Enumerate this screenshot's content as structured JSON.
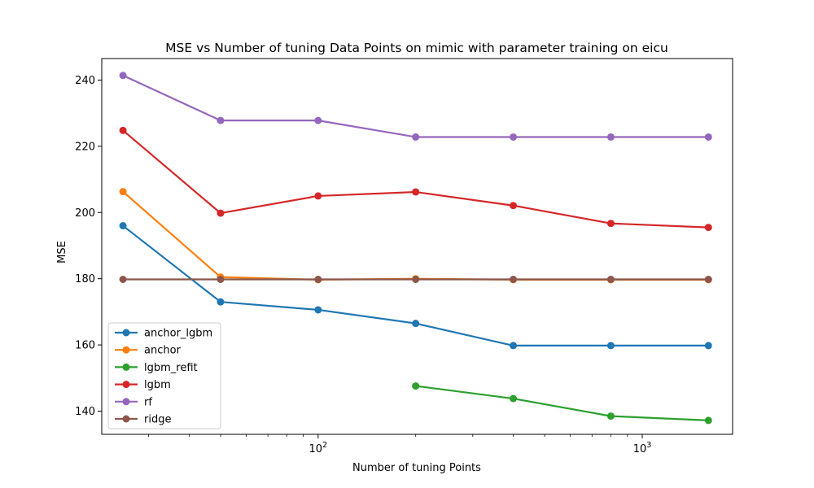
{
  "chart_data": {
    "type": "line",
    "title": "MSE vs Number of tuning Data Points on mimic with parameter training on eicu",
    "xlabel": "Number of tuning Points",
    "ylabel": "MSE",
    "xscale": "log",
    "xlim": [
      21.5,
      1900
    ],
    "ylim": [
      133,
      246.5
    ],
    "xticks": [
      {
        "value": 100,
        "base": "10",
        "exp": "2"
      },
      {
        "value": 1000,
        "base": "10",
        "exp": "3"
      }
    ],
    "yticks": [
      140,
      160,
      180,
      200,
      220,
      240
    ],
    "grid": false,
    "legend_position": "lower-left",
    "x": [
      25,
      50,
      100,
      200,
      400,
      800,
      1600
    ],
    "series": [
      {
        "name": "anchor_lgbm",
        "color": "#1f77b4",
        "values": [
          196,
          173,
          170.6,
          166.5,
          159.8,
          159.8,
          159.8
        ]
      },
      {
        "name": "anchor",
        "color": "#ff7f0e",
        "values": [
          206.3,
          180.5,
          179.7,
          180,
          179.7,
          179.7,
          179.7
        ]
      },
      {
        "name": "lgbm_refit",
        "color": "#2ca02c",
        "values": [
          null,
          null,
          null,
          147.6,
          143.8,
          138.5,
          137.2
        ]
      },
      {
        "name": "lgbm",
        "color": "#d62728",
        "values": [
          224.8,
          199.8,
          205,
          206.2,
          202.1,
          196.7,
          195.5
        ]
      },
      {
        "name": "rf",
        "color": "#9467bd",
        "values": [
          241.4,
          227.8,
          227.8,
          222.8,
          222.8,
          222.8,
          222.8
        ]
      },
      {
        "name": "ridge",
        "color": "#8c564b",
        "values": [
          179.8,
          179.8,
          179.8,
          179.8,
          179.8,
          179.8,
          179.8
        ]
      }
    ]
  }
}
